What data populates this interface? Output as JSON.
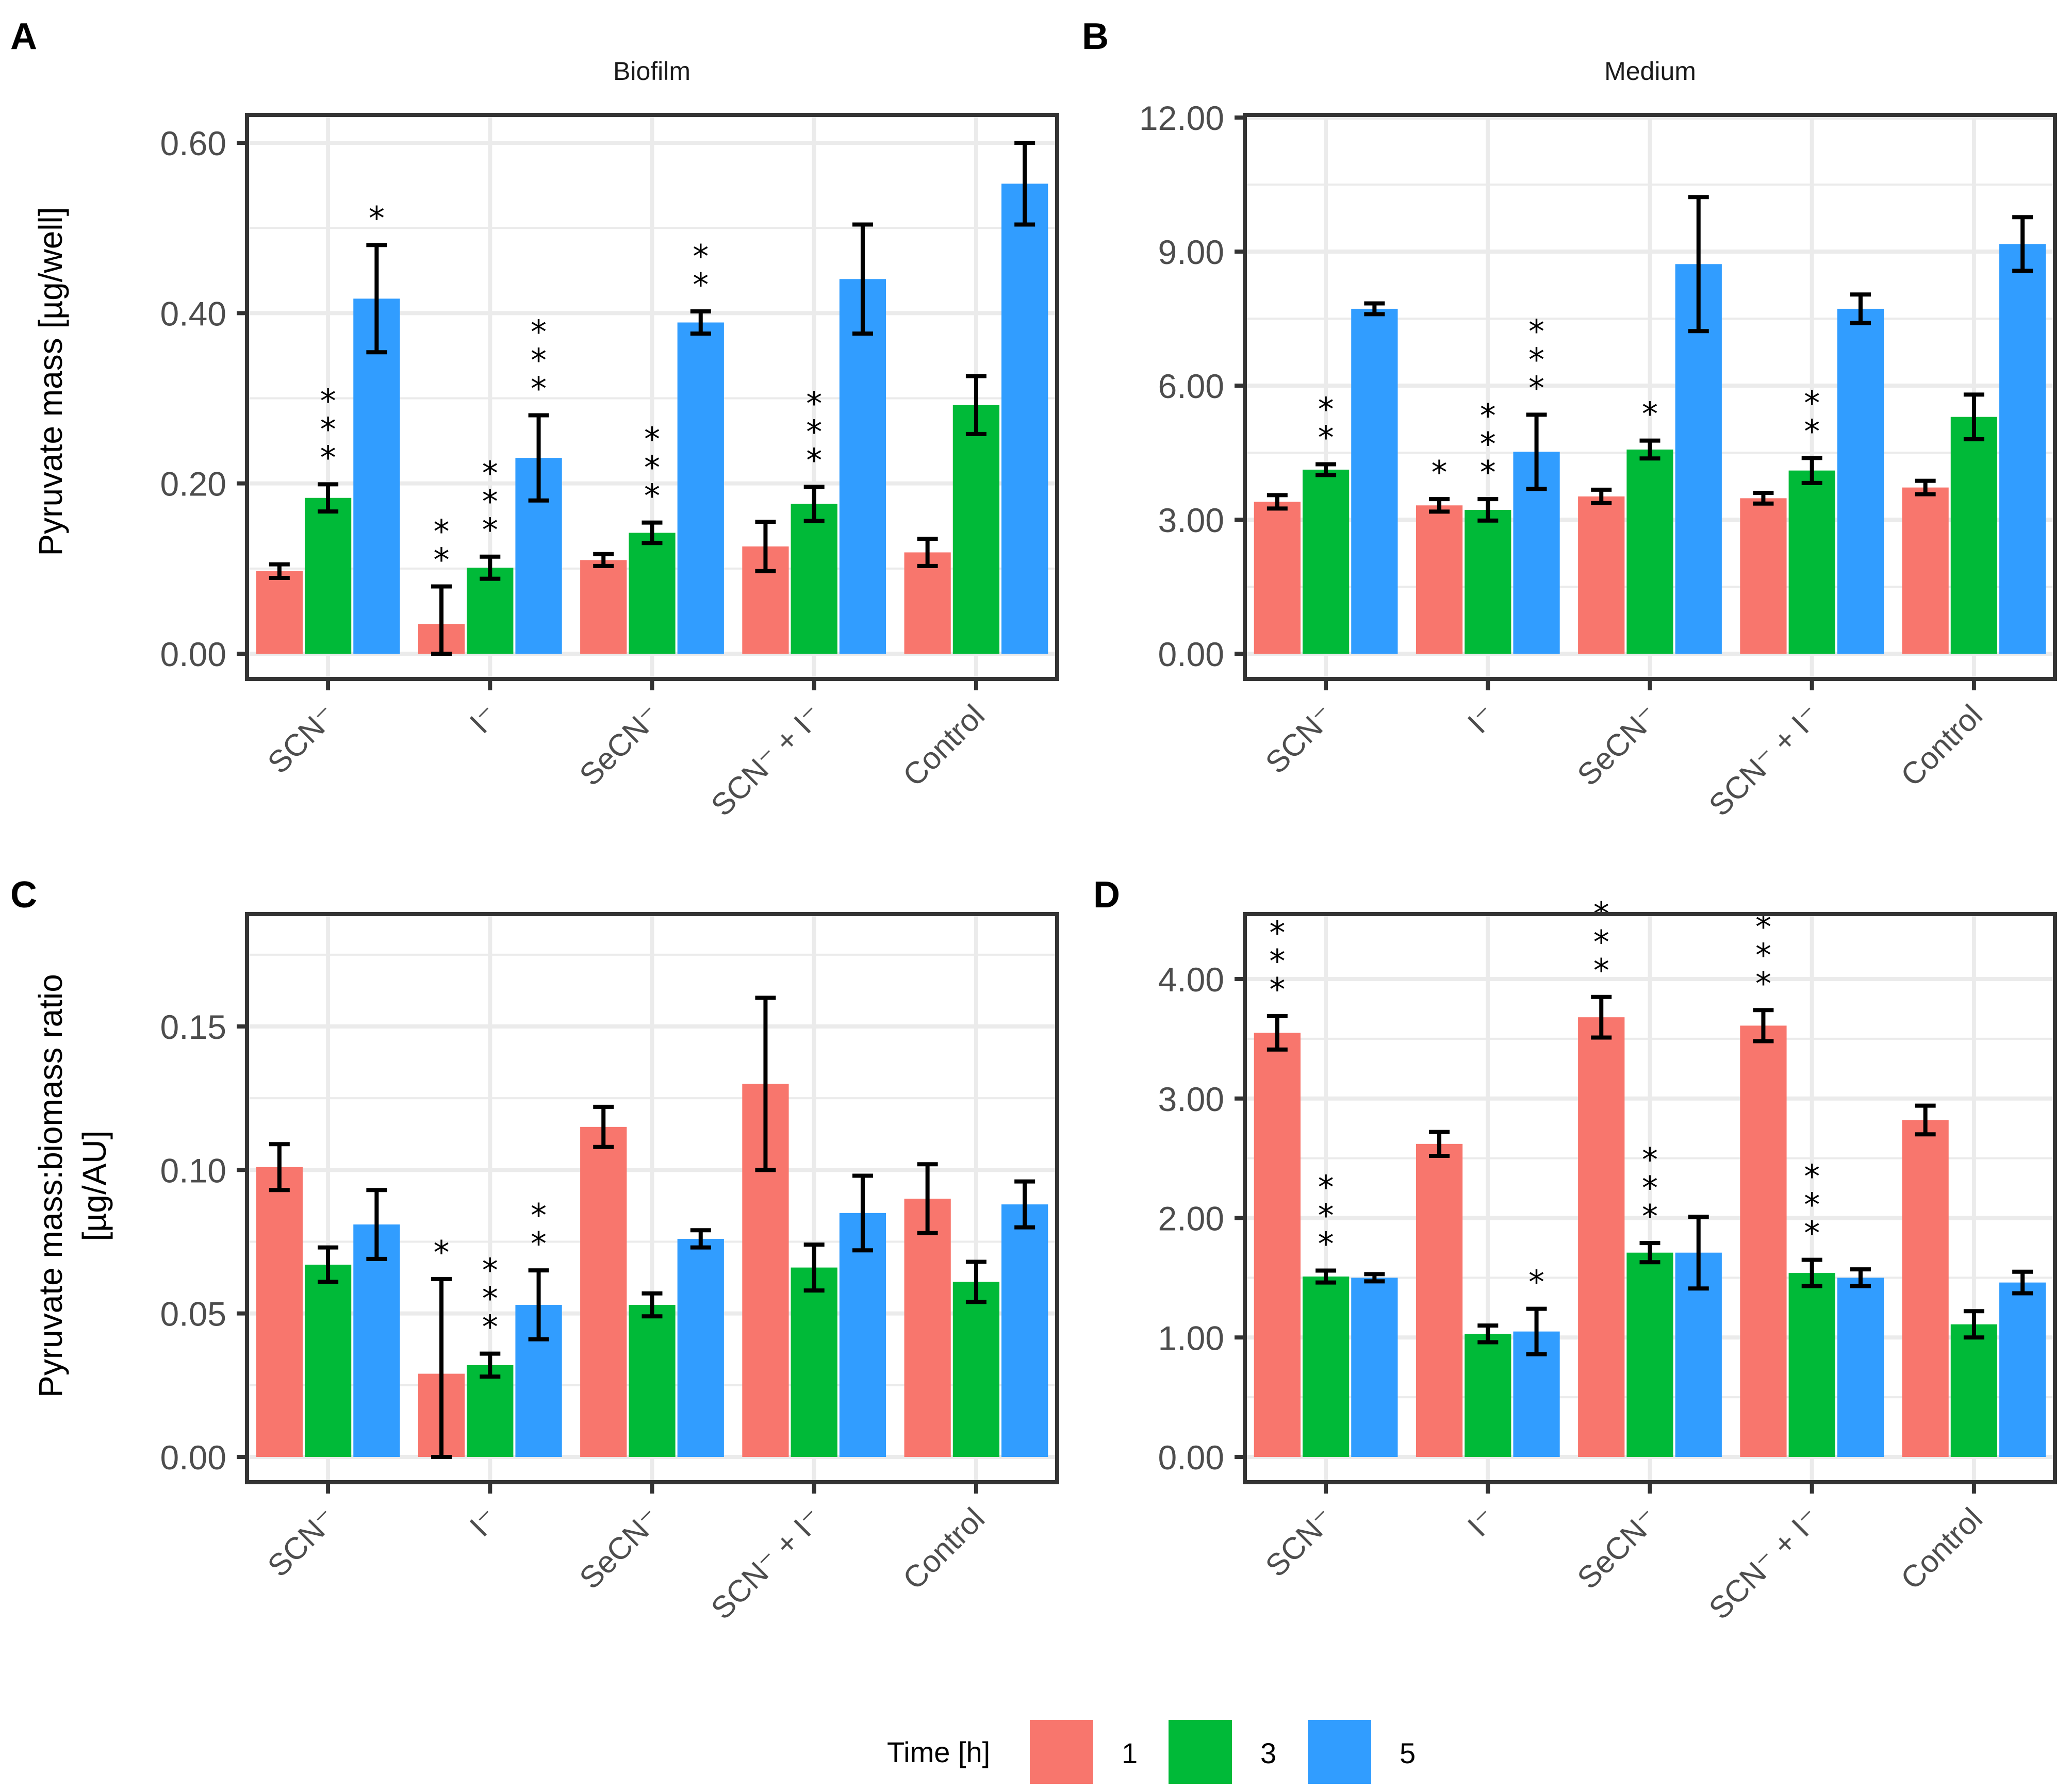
{
  "legend": {
    "title": "Time [h]",
    "items": [
      {
        "label": "1",
        "color": "#F8766D"
      },
      {
        "label": "3",
        "color": "#00BA38"
      },
      {
        "label": "5",
        "color": "#319DFF"
      }
    ]
  },
  "chart_data": [
    {
      "panel": "A",
      "type": "bar",
      "title": "Biofilm",
      "xlabel": "",
      "ylabel": "Pyruvate mass [µg/well]",
      "ylim": [
        0,
        0.65
      ],
      "yticks": [
        "0.00",
        "0.20",
        "0.40",
        "0.60"
      ],
      "ytick_values": [
        0,
        0.2,
        0.4,
        0.6
      ],
      "minor_grid": [
        0.1,
        0.3,
        0.5
      ],
      "grid": true,
      "categories": [
        "SCN⁻",
        "I⁻",
        "SeCN⁻",
        "SCN⁻ + I⁻",
        "Control"
      ],
      "series": [
        {
          "name": "1",
          "values": [
            0.097,
            0.035,
            0.11,
            0.126,
            0.119
          ],
          "errors": [
            0.008,
            0.044,
            0.007,
            0.029,
            0.016
          ],
          "stars": [
            "",
            "**",
            "",
            "",
            ""
          ]
        },
        {
          "name": "3",
          "values": [
            0.183,
            0.101,
            0.142,
            0.176,
            0.292
          ],
          "errors": [
            0.016,
            0.013,
            0.012,
            0.02,
            0.034
          ],
          "stars": [
            "***",
            "***",
            "***",
            "***",
            ""
          ]
        },
        {
          "name": "5",
          "values": [
            0.417,
            0.23,
            0.389,
            0.44,
            0.552
          ],
          "errors": [
            0.063,
            0.05,
            0.013,
            0.064,
            0.048
          ],
          "stars": [
            "*",
            "***",
            "**",
            "",
            ""
          ]
        }
      ]
    },
    {
      "panel": "B",
      "type": "bar",
      "title": "Medium",
      "xlabel": "",
      "ylabel": "",
      "ylim": [
        0,
        12.0
      ],
      "yticks": [
        "0.00",
        "3.00",
        "6.00",
        "9.00",
        "12.00"
      ],
      "ytick_values": [
        0,
        3,
        6,
        9,
        12
      ],
      "minor_grid": [
        1.5,
        4.5,
        7.5,
        10.5
      ],
      "grid": true,
      "categories": [
        "SCN⁻",
        "I⁻",
        "SeCN⁻",
        "SCN⁻ + I⁻",
        "Control"
      ],
      "series": [
        {
          "name": "1",
          "values": [
            3.4,
            3.32,
            3.52,
            3.48,
            3.72
          ],
          "errors": [
            0.15,
            0.14,
            0.15,
            0.12,
            0.15
          ],
          "stars": [
            "",
            "*",
            "",
            "",
            ""
          ]
        },
        {
          "name": "3",
          "values": [
            4.12,
            3.22,
            4.57,
            4.1,
            5.3
          ],
          "errors": [
            0.12,
            0.24,
            0.2,
            0.28,
            0.5
          ],
          "stars": [
            "**",
            "***",
            "*",
            "**",
            ""
          ]
        },
        {
          "name": "5",
          "values": [
            7.72,
            4.52,
            8.72,
            7.72,
            9.17
          ],
          "errors": [
            0.12,
            0.83,
            1.5,
            0.32,
            0.6
          ],
          "stars": [
            "",
            "***",
            "",
            "",
            ""
          ]
        }
      ]
    },
    {
      "panel": "C",
      "type": "bar",
      "title": "",
      "xlabel": "",
      "ylabel": "Pyruvate mass:biomass ratio [µg/AU]",
      "ylabel_lines": [
        "Pyruvate mass:biomass ratio",
        "[µg/AU]"
      ],
      "ylim": [
        0,
        0.185
      ],
      "yticks": [
        "0.00",
        "0.05",
        "0.10",
        "0.15"
      ],
      "ytick_values": [
        0,
        0.05,
        0.1,
        0.15
      ],
      "minor_grid": [
        0.025,
        0.075,
        0.125,
        0.175
      ],
      "grid": true,
      "categories": [
        "SCN⁻",
        "I⁻",
        "SeCN⁻",
        "SCN⁻ + I⁻",
        "Control"
      ],
      "series": [
        {
          "name": "1",
          "values": [
            0.101,
            0.029,
            0.115,
            0.13,
            0.09
          ],
          "errors": [
            0.008,
            0.033,
            0.007,
            0.03,
            0.012
          ],
          "stars": [
            "",
            "*",
            "",
            "",
            ""
          ]
        },
        {
          "name": "3",
          "values": [
            0.067,
            0.032,
            0.053,
            0.066,
            0.061
          ],
          "errors": [
            0.006,
            0.004,
            0.004,
            0.008,
            0.007
          ],
          "stars": [
            "",
            "***",
            "",
            "",
            ""
          ]
        },
        {
          "name": "5",
          "values": [
            0.081,
            0.053,
            0.076,
            0.085,
            0.088
          ],
          "errors": [
            0.012,
            0.012,
            0.003,
            0.013,
            0.008
          ],
          "stars": [
            "",
            "**",
            "",
            "",
            ""
          ]
        }
      ]
    },
    {
      "panel": "D",
      "type": "bar",
      "title": "",
      "xlabel": "",
      "ylabel": "",
      "ylim": [
        0,
        4.5
      ],
      "yticks": [
        "0.00",
        "1.00",
        "2.00",
        "3.00",
        "4.00"
      ],
      "ytick_values": [
        0,
        1,
        2,
        3,
        4
      ],
      "minor_grid": [
        0.5,
        1.5,
        2.5,
        3.5
      ],
      "grid": true,
      "categories": [
        "SCN⁻",
        "I⁻",
        "SeCN⁻",
        "SCN⁻ + I⁻",
        "Control"
      ],
      "series": [
        {
          "name": "1",
          "values": [
            3.55,
            2.62,
            3.68,
            3.61,
            2.82
          ],
          "errors": [
            0.14,
            0.1,
            0.17,
            0.13,
            0.12
          ],
          "stars": [
            "***",
            "",
            "***",
            "***",
            ""
          ]
        },
        {
          "name": "3",
          "values": [
            1.51,
            1.03,
            1.71,
            1.54,
            1.11
          ],
          "errors": [
            0.05,
            0.07,
            0.08,
            0.11,
            0.11
          ],
          "stars": [
            "***",
            "",
            "***",
            "***",
            ""
          ]
        },
        {
          "name": "5",
          "values": [
            1.5,
            1.05,
            1.71,
            1.5,
            1.46
          ],
          "errors": [
            0.03,
            0.19,
            0.3,
            0.07,
            0.09
          ],
          "stars": [
            "",
            "*",
            "",
            "",
            ""
          ]
        }
      ]
    }
  ]
}
